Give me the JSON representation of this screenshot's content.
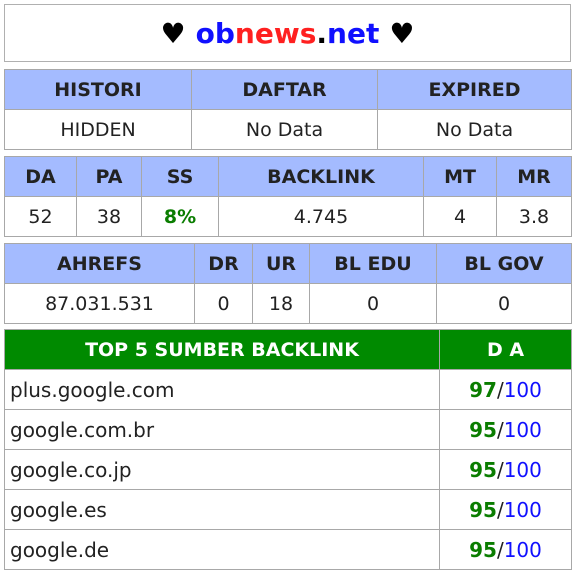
{
  "header": {
    "heart_left": "♥",
    "title_part1": "ob",
    "title_part2": "news",
    "title_part3": ".",
    "title_part4": "net",
    "heart_right": "♥"
  },
  "history_table": {
    "headers": [
      "HISTORI",
      "DAFTAR",
      "EXPIRED"
    ],
    "values": [
      "HIDDEN",
      "No Data",
      "No Data"
    ]
  },
  "metrics_table": {
    "headers": [
      "DA",
      "PA",
      "SS",
      "BACKLINK",
      "MT",
      "MR"
    ],
    "values": [
      "52",
      "38",
      "8%",
      "4.745",
      "4",
      "3.8"
    ]
  },
  "ahrefs_table": {
    "headers": [
      "AHREFS",
      "DR",
      "UR",
      "BL EDU",
      "BL GOV"
    ],
    "values": [
      "87.031.531",
      "0",
      "18",
      "0",
      "0"
    ]
  },
  "backlinks_table": {
    "headers": [
      "TOP 5 SUMBER BACKLINK",
      "D A"
    ],
    "rows": [
      {
        "site": "plus.google.com",
        "da": "97",
        "slash": "/",
        "max": "100"
      },
      {
        "site": "google.com.br",
        "da": "95",
        "slash": "/",
        "max": "100"
      },
      {
        "site": "google.co.jp",
        "da": "95",
        "slash": "/",
        "max": "100"
      },
      {
        "site": "google.es",
        "da": "95",
        "slash": "/",
        "max": "100"
      },
      {
        "site": "google.de",
        "da": "95",
        "slash": "/",
        "max": "100"
      }
    ]
  },
  "colors": {
    "header_bg": "#a4bbff",
    "backlink_header_bg": "#008a00",
    "score_green": "#0a7d00",
    "score_blue": "#1010ff",
    "title_blue": "#1010ff",
    "title_red": "#ff2020"
  }
}
